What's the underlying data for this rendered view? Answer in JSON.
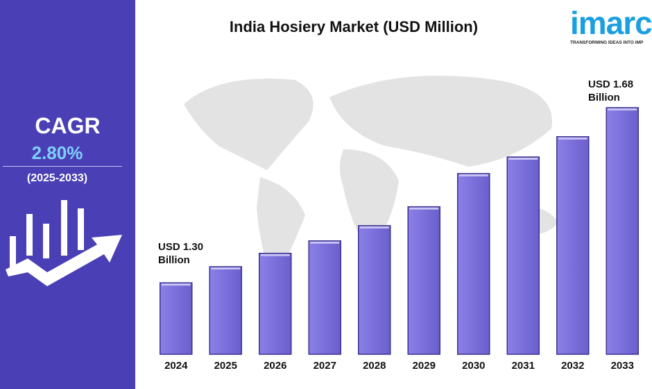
{
  "chart_data": {
    "type": "bar",
    "title": "India Hosiery Market (USD Million)",
    "categories": [
      "2024",
      "2025",
      "2026",
      "2027",
      "2028",
      "2029",
      "2030",
      "2031",
      "2032",
      "2033"
    ],
    "values": [
      1300,
      1335,
      1364,
      1391,
      1424,
      1465,
      1537,
      1573,
      1617,
      1680
    ],
    "color": "#7b6fdb",
    "ylim": [
      1145,
      1680
    ],
    "annotations": [
      "USD 1.30 Billion",
      "USD 1.68 Billion"
    ]
  },
  "sidebar": {
    "heading": "CAGR",
    "rate": "2.80%",
    "period": "(2025-2033)"
  },
  "logo": {
    "name": "imarc",
    "tagline": "TRANSFORMING IDEAS INTO IMP"
  }
}
